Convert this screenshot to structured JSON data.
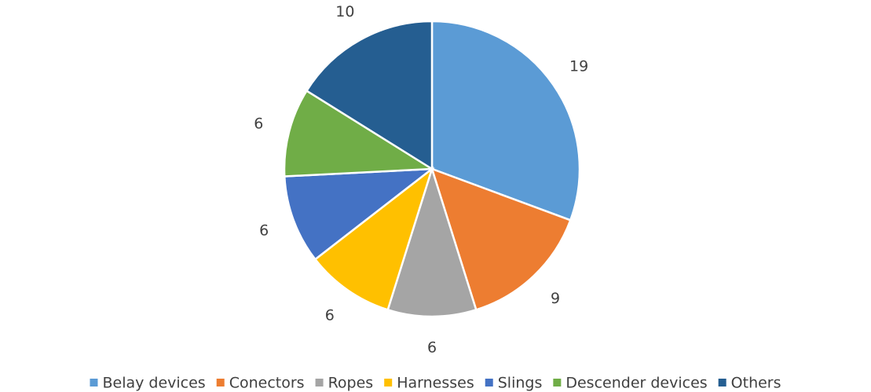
{
  "chart_data": {
    "type": "pie",
    "categories": [
      "Belay devices",
      "Conectors",
      "Ropes",
      "Harnesses",
      "Slings",
      "Descender devices",
      "Others"
    ],
    "values": [
      19,
      9,
      6,
      6,
      6,
      6,
      10
    ],
    "colors": [
      "#5b9bd5",
      "#ed7d31",
      "#a5a5a5",
      "#ffc000",
      "#4472c4",
      "#70ad47",
      "#255e91"
    ],
    "legend": "bottom"
  }
}
